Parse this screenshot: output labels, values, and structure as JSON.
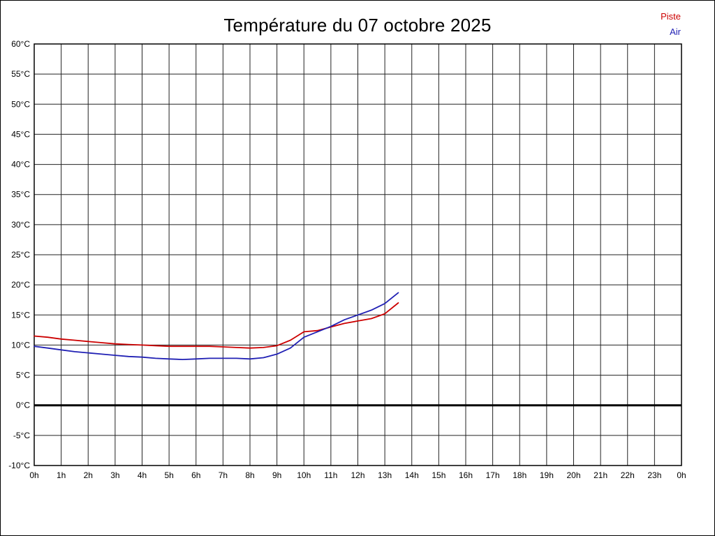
{
  "title": "Température du 07 octobre 2025",
  "legend": {
    "piste": {
      "label": "Piste",
      "color": "#cc0000"
    },
    "air": {
      "label": "Air",
      "color": "#2020b4"
    }
  },
  "chart_data": {
    "type": "line",
    "title": "Température du 07 octobre 2025",
    "xlabel": "heure",
    "ylabel": "Température (°C)",
    "xlim": [
      0,
      24
    ],
    "ylim": [
      -10,
      60
    ],
    "y_tick_step": 5,
    "grid": true,
    "legend_position": "top-right",
    "zero_line": 0,
    "x_tick_labels": [
      "0h",
      "1h",
      "2h",
      "3h",
      "4h",
      "5h",
      "6h",
      "7h",
      "8h",
      "9h",
      "10h",
      "11h",
      "12h",
      "13h",
      "14h",
      "15h",
      "16h",
      "17h",
      "18h",
      "19h",
      "20h",
      "21h",
      "22h",
      "23h",
      "0h"
    ],
    "y_tick_labels": [
      "60°C",
      "55°C",
      "50°C",
      "45°C",
      "40°C",
      "35°C",
      "30°C",
      "25°C",
      "20°C",
      "15°C",
      "10°C",
      "5°C",
      "0°C",
      "-5°C",
      "-10°C"
    ],
    "x": [
      0,
      0.5,
      1,
      1.5,
      2,
      2.5,
      3,
      3.5,
      4,
      4.5,
      5,
      5.5,
      6,
      6.5,
      7,
      7.5,
      8,
      8.5,
      9,
      9.5,
      10,
      10.5,
      11,
      11.5,
      12,
      12.5,
      13,
      13.5
    ],
    "series": [
      {
        "name": "Piste",
        "color": "#cc0000",
        "values": [
          11.5,
          11.3,
          11.0,
          10.8,
          10.6,
          10.4,
          10.2,
          10.1,
          10.0,
          9.9,
          9.8,
          9.8,
          9.8,
          9.8,
          9.7,
          9.6,
          9.5,
          9.6,
          9.9,
          10.8,
          12.2,
          12.4,
          13.0,
          13.6,
          14.0,
          14.4,
          15.2,
          17.0
        ]
      },
      {
        "name": "Air",
        "color": "#2020b4",
        "values": [
          9.8,
          9.5,
          9.2,
          8.9,
          8.7,
          8.5,
          8.3,
          8.1,
          8.0,
          7.8,
          7.7,
          7.6,
          7.7,
          7.8,
          7.8,
          7.8,
          7.7,
          7.9,
          8.5,
          9.5,
          11.3,
          12.2,
          13.1,
          14.2,
          15.0,
          15.8,
          16.9,
          18.7
        ]
      }
    ]
  }
}
